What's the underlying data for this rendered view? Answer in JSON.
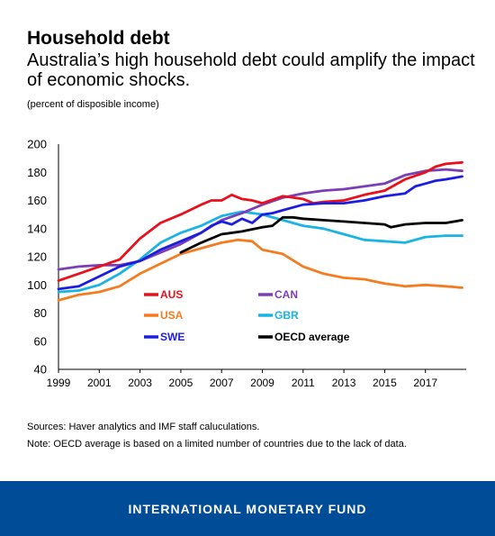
{
  "chart_data": {
    "type": "line",
    "title": "Household debt",
    "subtitle": "Australia’s high household debt could amplify the impact of economic shocks.",
    "units": "(percent of disposible income)",
    "xlabel": "",
    "ylabel": "",
    "ylim": [
      40,
      200
    ],
    "xlim": [
      1999,
      2019
    ],
    "yticks": [
      "40",
      "60",
      "80",
      "100",
      "120",
      "140",
      "160",
      "180",
      "200"
    ],
    "xticks": [
      "1999",
      "2001",
      "2003",
      "2005",
      "2007",
      "2009",
      "2011",
      "2013",
      "2015",
      "2017"
    ],
    "grid": false,
    "legend_position": "lower-center",
    "series": [
      {
        "name": "AUS",
        "color": "#e8101b",
        "x": [
          1999,
          2000,
          2001,
          2002,
          2003,
          2004,
          2005,
          2006,
          2006.5,
          2007,
          2007.5,
          2008,
          2008.5,
          2009,
          2010,
          2011,
          2011.5,
          2012,
          2013,
          2014,
          2015,
          2016,
          2017,
          2017.5,
          2018,
          2018.8
        ],
        "y": [
          103,
          108,
          113,
          118,
          133,
          144,
          150,
          157,
          160,
          160,
          164,
          161,
          160,
          158,
          163,
          161,
          158,
          159,
          160,
          164,
          167,
          175,
          180,
          184,
          186,
          187
        ]
      },
      {
        "name": "CAN",
        "color": "#7a3fb5",
        "x": [
          1999,
          2000,
          2001,
          2002,
          2003,
          2004,
          2005,
          2006,
          2007,
          2008,
          2009,
          2010,
          2011,
          2012,
          2013,
          2014,
          2015,
          2016,
          2017,
          2018,
          2018.8
        ],
        "y": [
          111,
          113,
          114,
          114,
          117,
          123,
          129,
          137,
          146,
          151,
          157,
          162,
          165,
          167,
          168,
          170,
          172,
          178,
          181,
          182,
          181
        ]
      },
      {
        "name": "USA",
        "color": "#f47c20",
        "x": [
          1999,
          2000,
          2001,
          2002,
          2003,
          2004,
          2005,
          2006,
          2007,
          2007.8,
          2008.5,
          2009,
          2010,
          2011,
          2012,
          2013,
          2014,
          2015,
          2016,
          2017,
          2018,
          2018.8
        ],
        "y": [
          89,
          93,
          95,
          99,
          108,
          115,
          122,
          126,
          130,
          132,
          131,
          125,
          122,
          113,
          108,
          105,
          104,
          101,
          99,
          100,
          99,
          98
        ]
      },
      {
        "name": "GBR",
        "color": "#19b4e3",
        "x": [
          1999,
          2000,
          2001,
          2002,
          2003,
          2004,
          2005,
          2006,
          2007,
          2008,
          2009,
          2010,
          2011,
          2012,
          2013,
          2014,
          2015,
          2016,
          2017,
          2018,
          2018.8
        ],
        "y": [
          95,
          96,
          100,
          108,
          118,
          130,
          137,
          142,
          149,
          152,
          150,
          146,
          142,
          140,
          136,
          132,
          131,
          130,
          134,
          135,
          135
        ]
      },
      {
        "name": "SWE",
        "color": "#1d1de0",
        "x": [
          1999,
          2000,
          2001,
          2002,
          2003,
          2004,
          2005,
          2006,
          2006.5,
          2007,
          2007.5,
          2008,
          2008.5,
          2009,
          2009.5,
          2010,
          2011,
          2012,
          2013,
          2014,
          2015,
          2016,
          2016.5,
          2017,
          2017.5,
          2018,
          2018.8
        ],
        "y": [
          97,
          99,
          106,
          113,
          117,
          125,
          131,
          137,
          142,
          145,
          143,
          147,
          144,
          150,
          151,
          153,
          157,
          158,
          158,
          160,
          163,
          165,
          170,
          172,
          174,
          175,
          177
        ]
      },
      {
        "name": "OECD average",
        "color": "#000000",
        "x": [
          2005,
          2006,
          2007,
          2008,
          2009,
          2009.5,
          2010,
          2010.5,
          2011,
          2012,
          2013,
          2014,
          2015,
          2015.3,
          2016,
          2017,
          2018,
          2018.8
        ],
        "y": [
          123,
          130,
          136,
          138,
          141,
          142,
          148,
          148,
          147,
          146,
          145,
          144,
          143,
          141,
          143,
          144,
          144,
          146
        ]
      }
    ]
  },
  "sources": "Sources: Haver analytics and IMF staff caluculations.",
  "note": "Note: OECD average is based on a limited number of countries due to the lack of data.",
  "footer": {
    "text": "INTERNATIONAL MONETARY FUND",
    "background": "#004c97"
  }
}
